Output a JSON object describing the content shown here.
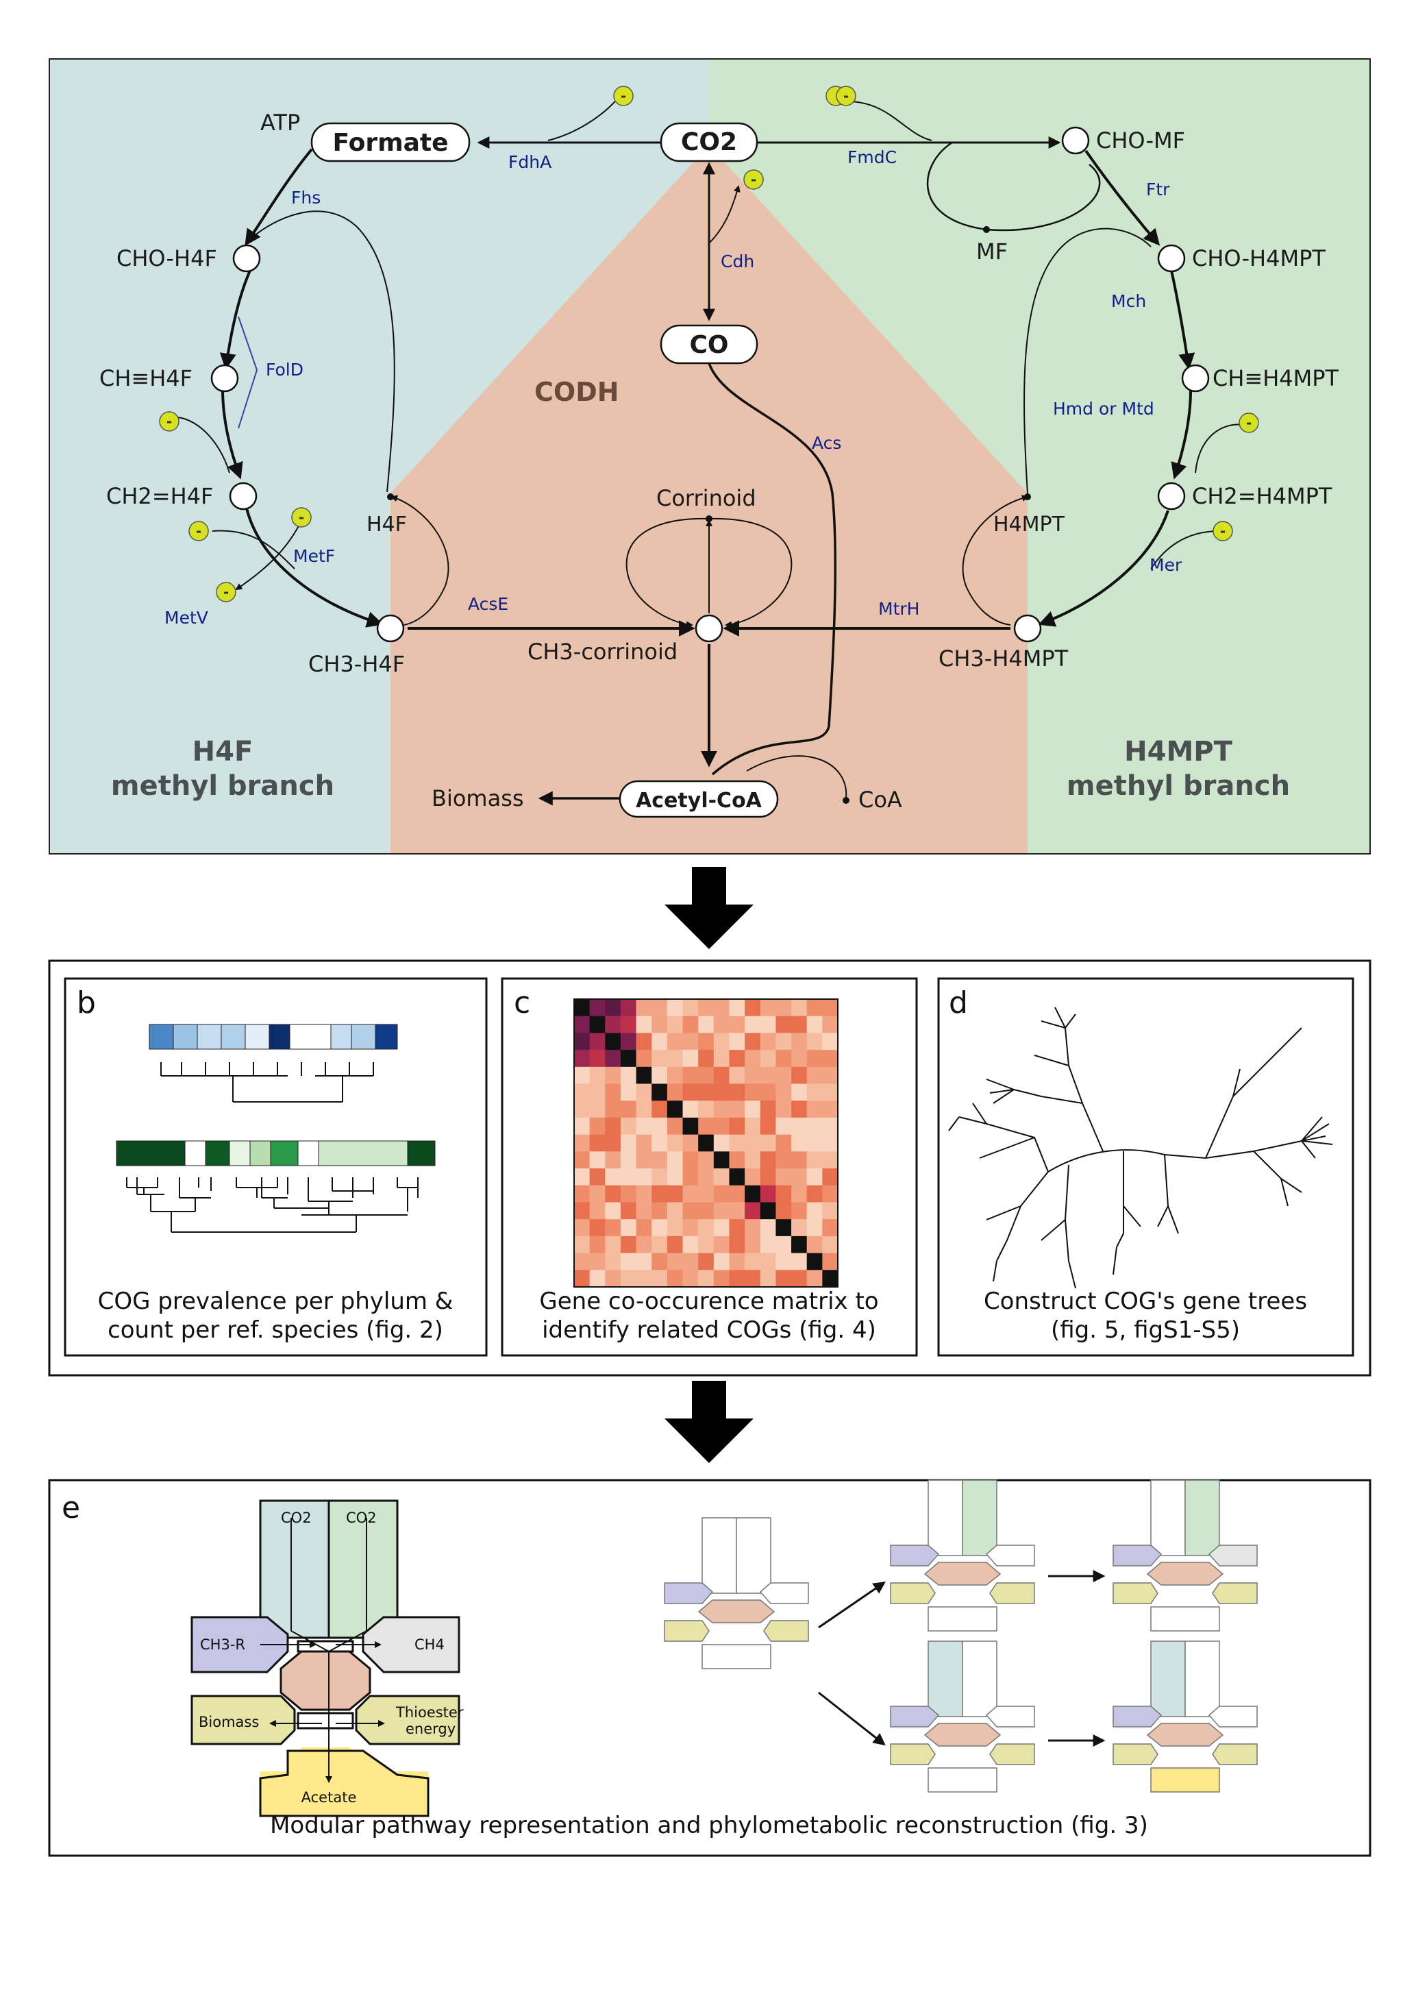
{
  "panel_a": {
    "co2": "CO2",
    "formate": "Formate",
    "co": "CO",
    "atp": "ATP",
    "cho_h4f": "CHO-H4F",
    "ch_h4f": "CH≡H4F",
    "ch2_h4f": "CH2=H4F",
    "ch3_h4f": "CH3-H4F",
    "h4f": "H4F",
    "cho_mf": "CHO-MF",
    "mf": "MF",
    "cho_h4mpt": "CHO-H4MPT",
    "ch_h4mpt": "CH≡H4MPT",
    "ch2_h4mpt": "CH2=H4MPT",
    "ch3_h4mpt": "CH3-H4MPT",
    "h4mpt": "H4MPT",
    "corrinoid": "Corrinoid",
    "ch3_corrinoid": "CH3-corrinoid",
    "acetyl_coa": "Acetyl-CoA",
    "biomass": "Biomass",
    "coa": "CoA",
    "codh": "CODH",
    "enzymes": {
      "fdha": "FdhA",
      "fhs": "Fhs",
      "fold": "FolD",
      "metf": "MetF",
      "metv": "MetV",
      "acse": "AcsE",
      "cdh": "Cdh",
      "acs": "Acs",
      "fmdc": "FmdC",
      "ftr": "Ftr",
      "mch": "Mch",
      "hmd": "Hmd or Mtd",
      "mer": "Mer",
      "mtrh": "MtrH"
    },
    "h4f_branch_line1": "H4F",
    "h4f_branch_line2": "methyl branch",
    "h4mpt_branch_line1": "H4MPT",
    "h4mpt_branch_line2": "methyl branch",
    "electron": "-"
  },
  "panel_b": {
    "letter": "b",
    "caption_line1": "COG prevalence per phylum &",
    "caption_line2": "count per ref. species (fig. 2)"
  },
  "panel_c": {
    "letter": "c",
    "caption_line1": "Gene co-occurence matrix to",
    "caption_line2": "identify related COGs (fig. 4)"
  },
  "panel_d": {
    "letter": "d",
    "caption_line1": "Construct COG's gene trees",
    "caption_line2": "(fig. 5, figS1-S5)"
  },
  "panel_e": {
    "letter": "e",
    "caption": "Modular pathway representation and phylometabolic reconstruction (fig. 3)",
    "co2_left": "CO2",
    "co2_right": "CO2",
    "ch3r": "CH3-R",
    "ch4": "CH4",
    "biomass": "Biomass",
    "thioester1": "Thioester",
    "thioester2": "energy",
    "acetate": "Acetate"
  },
  "colors": {
    "h4f_bg": "#cfe3e3",
    "h4mpt_bg": "#cde6cd",
    "codh_bg": "#e8c2ad",
    "electron": "#d6e21f",
    "enzyme": "#10208a"
  }
}
